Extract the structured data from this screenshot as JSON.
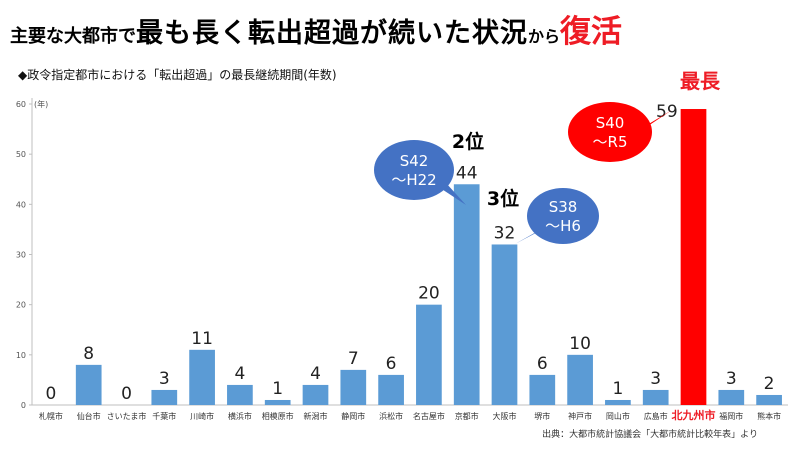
{
  "header": {
    "title_part1": "主要な大都市で",
    "title_part2": "最も長く転出超過が続いた状況",
    "title_part3": "から",
    "title_part4": "復活"
  },
  "subtitle": "◆政令指定都市における「転出超過」の最長継続期間(年数)",
  "source": "出典：大都市統計協議会「大都市統計比較年表」より",
  "chart_data": {
    "type": "bar",
    "title": "",
    "xlabel": "",
    "ylabel": "(年)",
    "ylim": [
      0,
      60
    ],
    "yticks": [
      0,
      10,
      20,
      30,
      40,
      50,
      60
    ],
    "grid": false,
    "categories": [
      "札幌市",
      "仙台市",
      "さいたま市",
      "千葉市",
      "川崎市",
      "横浜市",
      "相模原市",
      "新潟市",
      "静岡市",
      "浜松市",
      "名古屋市",
      "京都市",
      "大阪市",
      "堺市",
      "神戸市",
      "岡山市",
      "広島市",
      "北九州市",
      "福岡市",
      "熊本市"
    ],
    "values": [
      0,
      8,
      0,
      3,
      11,
      4,
      1,
      4,
      7,
      6,
      20,
      44,
      32,
      6,
      10,
      1,
      3,
      59,
      3,
      2
    ],
    "highlight_index": 17,
    "colors": {
      "bar": "#5b9bd5",
      "highlight": "#ff0000",
      "bubble_blue": "#4472c4"
    },
    "annotations": [
      {
        "category": "京都市",
        "rank_label": "2位",
        "bubble": [
          "S42",
          "～H22"
        ]
      },
      {
        "category": "大阪市",
        "rank_label": "3位",
        "bubble": [
          "S38",
          "～H6"
        ]
      },
      {
        "category": "北九州市",
        "rank_label": "最長",
        "bubble": [
          "S40",
          "～R5"
        ]
      }
    ]
  }
}
